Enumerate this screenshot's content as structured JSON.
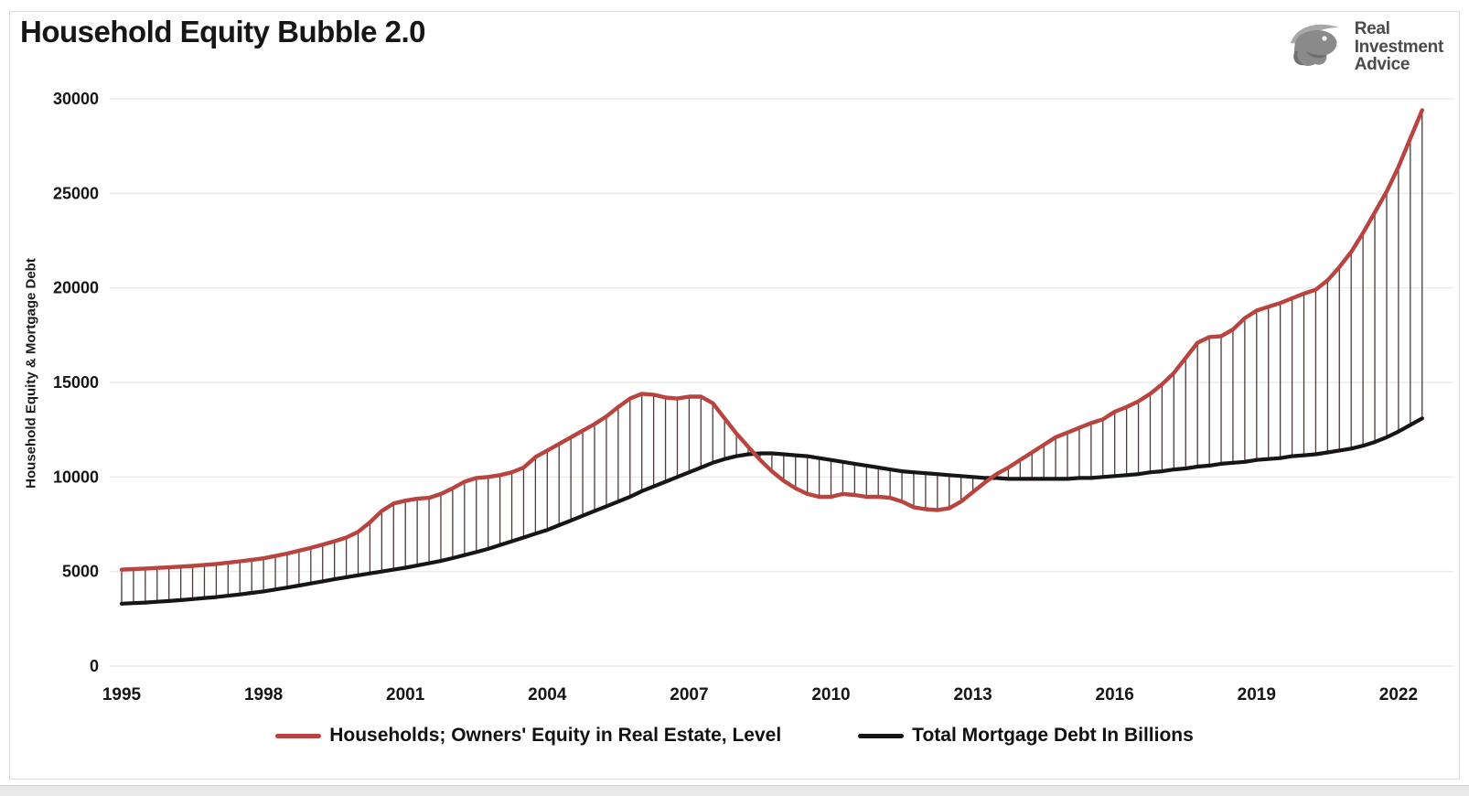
{
  "page_title": "Household Equity Bubble 2.0",
  "logo": {
    "lines": [
      "Real",
      "Investment",
      "Advice"
    ]
  },
  "chart_data": {
    "type": "line",
    "title": "Household Equity Bubble 2.0",
    "xlabel": "",
    "ylabel": "Household Equity & Mortgage Debt",
    "ylim": [
      0,
      30000
    ],
    "y_ticks": [
      0,
      5000,
      10000,
      15000,
      20000,
      25000,
      30000
    ],
    "x_ticks": [
      1995,
      1998,
      2001,
      2004,
      2007,
      2010,
      2013,
      2016,
      2019,
      2022
    ],
    "x_start": 1995.0,
    "x_step_years": 0.25,
    "x_end": 2022.5,
    "frequency": "quarterly",
    "grid": "horizontal-only",
    "grid_color": "#ebebeb",
    "legend_position": "bottom",
    "hatch": {
      "style": "vertical-high-low-lines",
      "color": "#4f3a3a"
    },
    "series": [
      {
        "name": "Households; Owners' Equity in Real Estate, Level",
        "color": "#b9433f",
        "values": [
          5100,
          5130,
          5160,
          5190,
          5220,
          5260,
          5300,
          5350,
          5400,
          5470,
          5540,
          5620,
          5700,
          5820,
          5950,
          6100,
          6250,
          6420,
          6600,
          6800,
          7100,
          7600,
          8200,
          8600,
          8750,
          8850,
          8900,
          9100,
          9400,
          9750,
          9950,
          10000,
          10100,
          10250,
          10500,
          11050,
          11400,
          11750,
          12100,
          12450,
          12800,
          13200,
          13700,
          14150,
          14400,
          14350,
          14200,
          14150,
          14250,
          14250,
          13900,
          13100,
          12300,
          11600,
          10900,
          10300,
          9800,
          9400,
          9100,
          8950,
          8950,
          9100,
          9050,
          8950,
          8950,
          8900,
          8700,
          8400,
          8300,
          8250,
          8350,
          8700,
          9200,
          9700,
          10150,
          10500,
          10900,
          11300,
          11700,
          12100,
          12350,
          12600,
          12850,
          13050,
          13450,
          13700,
          14000,
          14400,
          14900,
          15500,
          16300,
          17100,
          17400,
          17450,
          17800,
          18400,
          18800,
          19000,
          19200,
          19450,
          19700,
          19900,
          20400,
          21100,
          21900,
          22900,
          24000,
          25100,
          26400,
          27900,
          29400
        ]
      },
      {
        "name": "Total Mortgage Debt In Billions",
        "color": "#161616",
        "values": [
          3300,
          3330,
          3360,
          3400,
          3440,
          3490,
          3540,
          3600,
          3650,
          3720,
          3790,
          3870,
          3950,
          4050,
          4150,
          4260,
          4370,
          4480,
          4590,
          4700,
          4800,
          4900,
          5000,
          5100,
          5200,
          5320,
          5440,
          5560,
          5710,
          5870,
          6030,
          6200,
          6400,
          6600,
          6800,
          7000,
          7200,
          7450,
          7700,
          7950,
          8200,
          8450,
          8700,
          8950,
          9250,
          9500,
          9750,
          10000,
          10250,
          10500,
          10750,
          10950,
          11100,
          11200,
          11250,
          11250,
          11200,
          11150,
          11100,
          11000,
          10900,
          10800,
          10700,
          10600,
          10500,
          10400,
          10300,
          10250,
          10200,
          10150,
          10100,
          10050,
          10000,
          9950,
          9950,
          9900,
          9900,
          9900,
          9900,
          9900,
          9900,
          9950,
          9950,
          10000,
          10050,
          10100,
          10150,
          10250,
          10300,
          10400,
          10450,
          10550,
          10600,
          10700,
          10750,
          10800,
          10900,
          10950,
          11000,
          11100,
          11150,
          11200,
          11300,
          11400,
          11500,
          11650,
          11850,
          12100,
          12400,
          12750,
          13100
        ]
      }
    ]
  }
}
